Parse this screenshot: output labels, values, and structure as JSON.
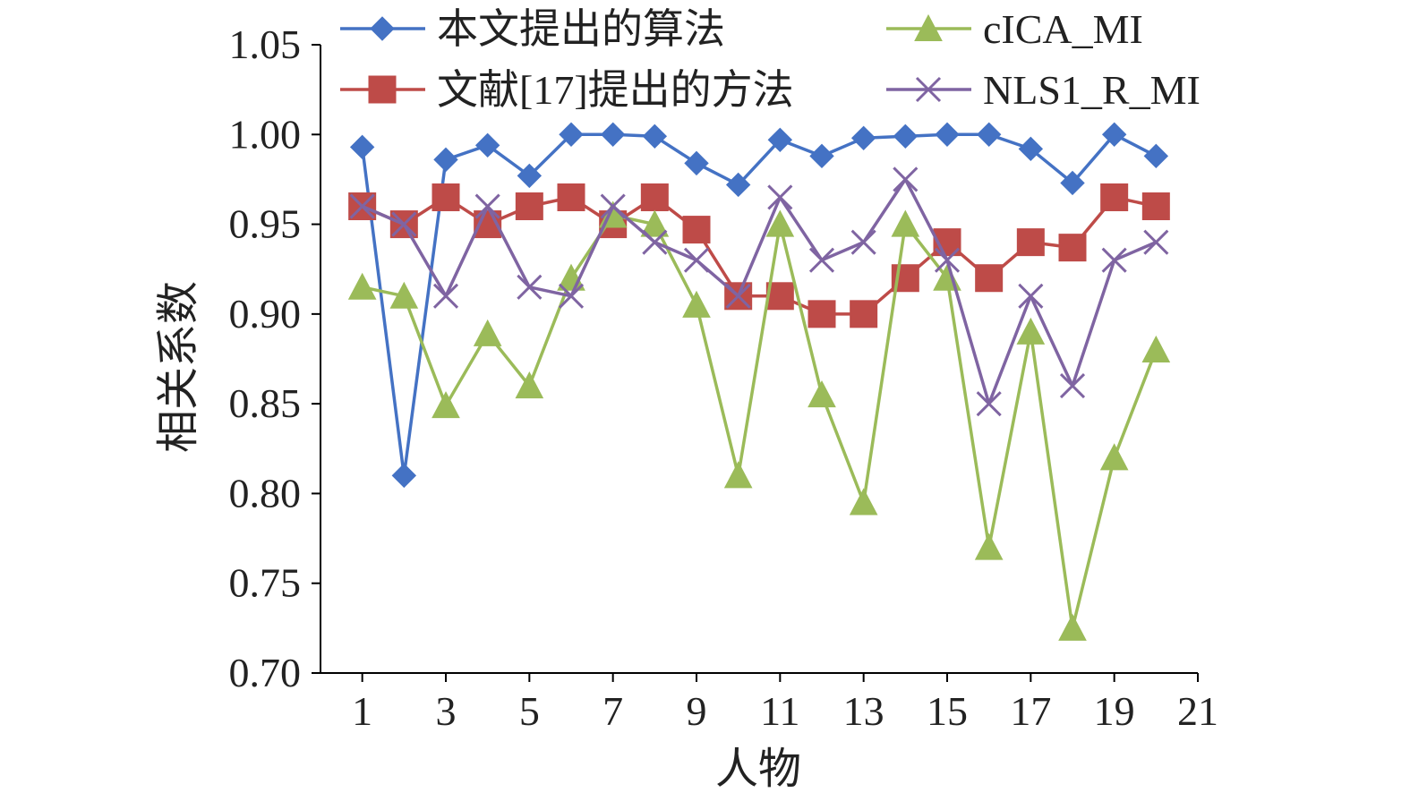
{
  "chart_data": {
    "type": "line",
    "xlabel": "人物",
    "ylabel": "相关系数",
    "xlim": [
      0,
      21
    ],
    "ylim": [
      0.7,
      1.05
    ],
    "xticks": [
      1,
      3,
      5,
      7,
      9,
      11,
      13,
      15,
      17,
      19,
      21
    ],
    "xtick_labels": [
      "1",
      "3",
      "5",
      "7",
      "9",
      "11",
      "13",
      "15",
      "17",
      "19",
      "21"
    ],
    "yticks": [
      0.7,
      0.75,
      0.8,
      0.85,
      0.9,
      0.95,
      1.0,
      1.05
    ],
    "ytick_labels": [
      "0.70",
      "0.75",
      "0.80",
      "0.85",
      "0.90",
      "0.95",
      "1.00",
      "1.05"
    ],
    "x": [
      1,
      2,
      3,
      4,
      5,
      6,
      7,
      8,
      9,
      10,
      11,
      12,
      13,
      14,
      15,
      16,
      17,
      18,
      19,
      20
    ],
    "grid": false,
    "legend_position": "top",
    "series": [
      {
        "name": "本文提出的算法",
        "color": "#4472c4",
        "marker": "diamond",
        "values": [
          0.993,
          0.81,
          0.986,
          0.994,
          0.977,
          1.0,
          1.0,
          0.999,
          0.984,
          0.972,
          0.997,
          0.988,
          0.998,
          0.999,
          1.0,
          1.0,
          0.992,
          0.973,
          1.0,
          0.988
        ]
      },
      {
        "name": "文献[17]提出的方法",
        "color": "#be4b48",
        "marker": "square",
        "values": [
          0.96,
          0.95,
          0.965,
          0.95,
          0.96,
          0.965,
          0.95,
          0.965,
          0.947,
          0.91,
          0.91,
          0.9,
          0.9,
          0.92,
          0.94,
          0.92,
          0.94,
          0.937,
          0.965,
          0.96
        ]
      },
      {
        "name": "cICA_MI",
        "color": "#9bbb59",
        "marker": "triangle",
        "values": [
          0.915,
          0.91,
          0.849,
          0.889,
          0.86,
          0.92,
          0.955,
          0.95,
          0.905,
          0.81,
          0.95,
          0.855,
          0.795,
          0.95,
          0.92,
          0.77,
          0.89,
          0.725,
          0.82,
          0.88
        ]
      },
      {
        "name": "NLS1_R_MI",
        "color": "#7f64a2",
        "marker": "x",
        "values": [
          0.96,
          0.95,
          0.91,
          0.96,
          0.915,
          0.91,
          0.96,
          0.94,
          0.93,
          0.91,
          0.965,
          0.93,
          0.94,
          0.975,
          0.93,
          0.85,
          0.91,
          0.86,
          0.93,
          0.94
        ]
      }
    ]
  }
}
